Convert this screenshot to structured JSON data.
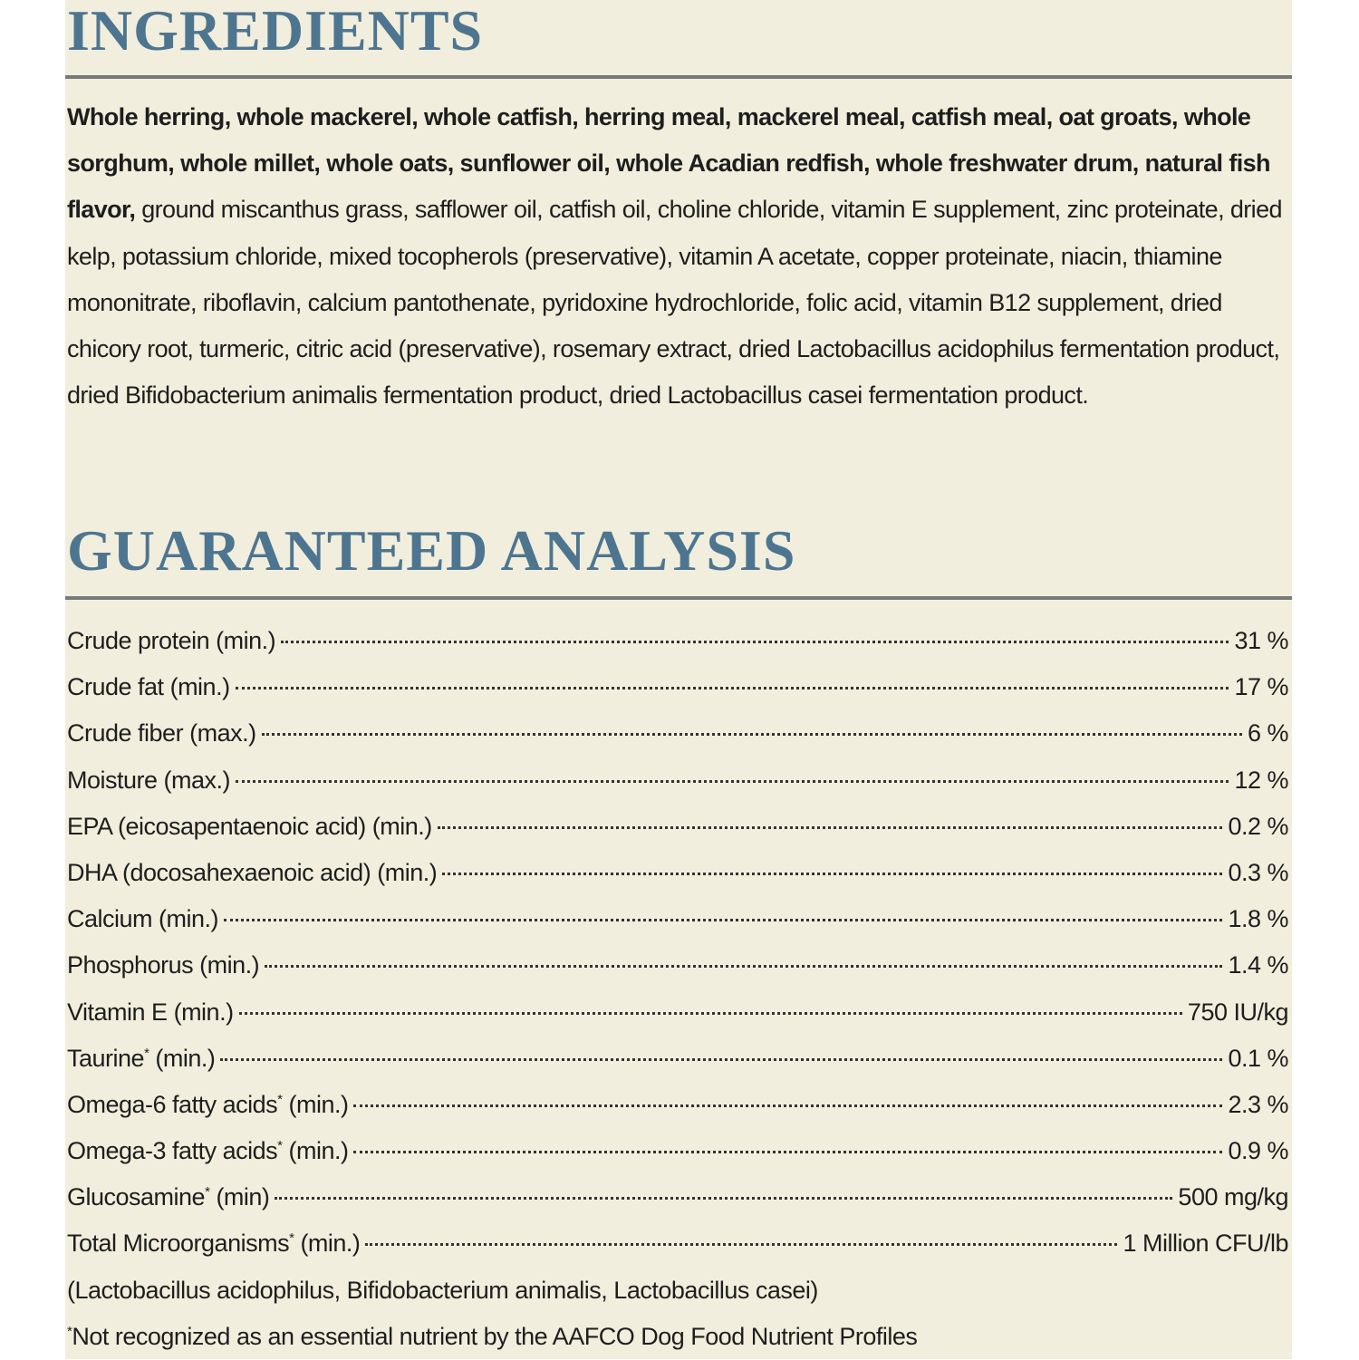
{
  "ingredients": {
    "title": "INGREDIENTS",
    "bold_text": "Whole herring, whole mackerel, whole catfish, herring meal, mackerel meal, catfish meal, oat groats, whole sorghum, whole millet, whole oats, sunflower oil, whole Acadian redfish, whole freshwater drum, natural fish flavor,",
    "text": "ground miscanthus grass, safflower oil, catfish oil, choline chloride, vitamin E supplement, zinc proteinate, dried kelp, potassium chloride, mixed tocopherols (preservative), vitamin A acetate, copper proteinate, niacin, thiamine mononitrate, riboflavin, calcium pantothenate, pyridoxine hydrochloride, folic acid, vitamin B12 supplement, dried chicory root, turmeric, citric acid (preservative), rosemary extract, dried Lactobacillus acidophilus fermentation product, dried Bifidobacterium animalis fermentation product, dried Lactobacillus casei fermentation product."
  },
  "analysis": {
    "title": "GUARANTEED ANALYSIS",
    "rows": [
      {
        "label": "Crude protein",
        "qualifier": "(min.)",
        "value": "31 %"
      },
      {
        "label": "Crude fat",
        "qualifier": "(min.)",
        "value": "17 %"
      },
      {
        "label": "Crude fiber",
        "qualifier": "(max.)",
        "value": "6 %"
      },
      {
        "label": "Moisture",
        "qualifier": "(max.)",
        "value": "12 %"
      },
      {
        "label": "EPA (eicosapentaenoic acid)",
        "qualifier": "(min.)",
        "value": "0.2 %"
      },
      {
        "label": "DHA (docosahexaenoic acid)",
        "qualifier": "(min.)",
        "value": "0.3 %"
      },
      {
        "label": "Calcium",
        "qualifier": "(min.)",
        "value": "1.8 %"
      },
      {
        "label": "Phosphorus",
        "qualifier": "(min.)",
        "value": "1.4 %"
      },
      {
        "label": "Vitamin E",
        "qualifier": "(min.)",
        "value": "750 IU/kg"
      },
      {
        "label": "Taurine",
        "mark": "*",
        "qualifier": "(min.)",
        "value": "0.1 %"
      },
      {
        "label": "Omega-6 fatty acids",
        "mark": "*",
        "qualifier": "(min.)",
        "value": "2.3 %"
      },
      {
        "label": "Omega-3 fatty acids",
        "mark": "*",
        "qualifier": "(min.)",
        "value": "0.9 %"
      },
      {
        "label": "Glucosamine",
        "mark": "*",
        "qualifier": "(min)",
        "value": "500 mg/kg"
      },
      {
        "label": "Total Microorganisms",
        "mark": "*",
        "qualifier": "(min.)",
        "value": "1 Million CFU/lb"
      }
    ],
    "strains": "(Lactobacillus acidophilus, Bifidobacterium animalis, Lactobacillus casei)",
    "footnote": {
      "mark": "*",
      "text": "Not recognized as an essential nutrient by the AAFCO Dog Food Nutrient Profiles"
    }
  }
}
